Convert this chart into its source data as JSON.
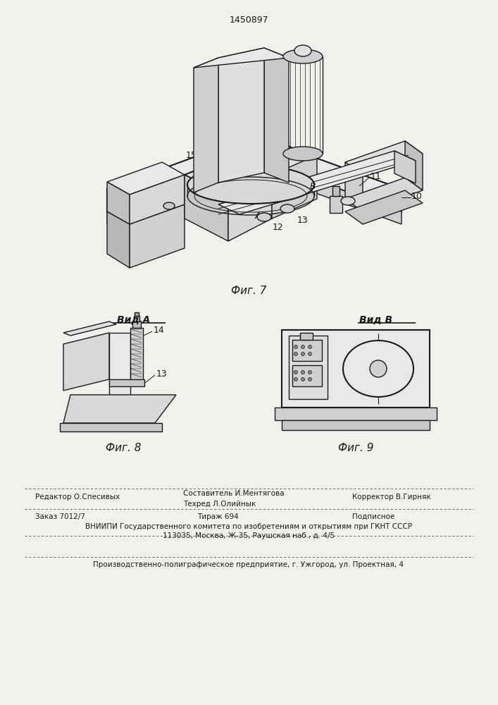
{
  "patent_number": "1450897",
  "fig7_caption": "Фиг. 7",
  "fig8_caption": "Фиг. 8",
  "fig9_caption": "Фиг. 9",
  "vid_a_label": "Вид А",
  "vid_b_label": "Вид В",
  "bg_color": "#f0f0ec",
  "line_color": "#1a1a1a",
  "footer": {
    "line1_left": "Редактор О.Спесивых",
    "line1_center_top": "Составитель И.Ментягова",
    "line1_center_bot": "Техред Л.Олийнык",
    "line1_right": "Корректор В.Гирняк",
    "line2_left": "Заказ 7012/7",
    "line2_center": "Тираж 694",
    "line2_right": "Подписное",
    "line3": "ВНИИПИ Государственного комитета по изобретениям и открытиям при ГКНТ СССР",
    "line4": "113035, Москва, Ж-35, Раушская наб., д. 4/5",
    "line5": "Производственно-полиграфическое предприятие, г. Ужгород, ул. Проектная, 4"
  }
}
